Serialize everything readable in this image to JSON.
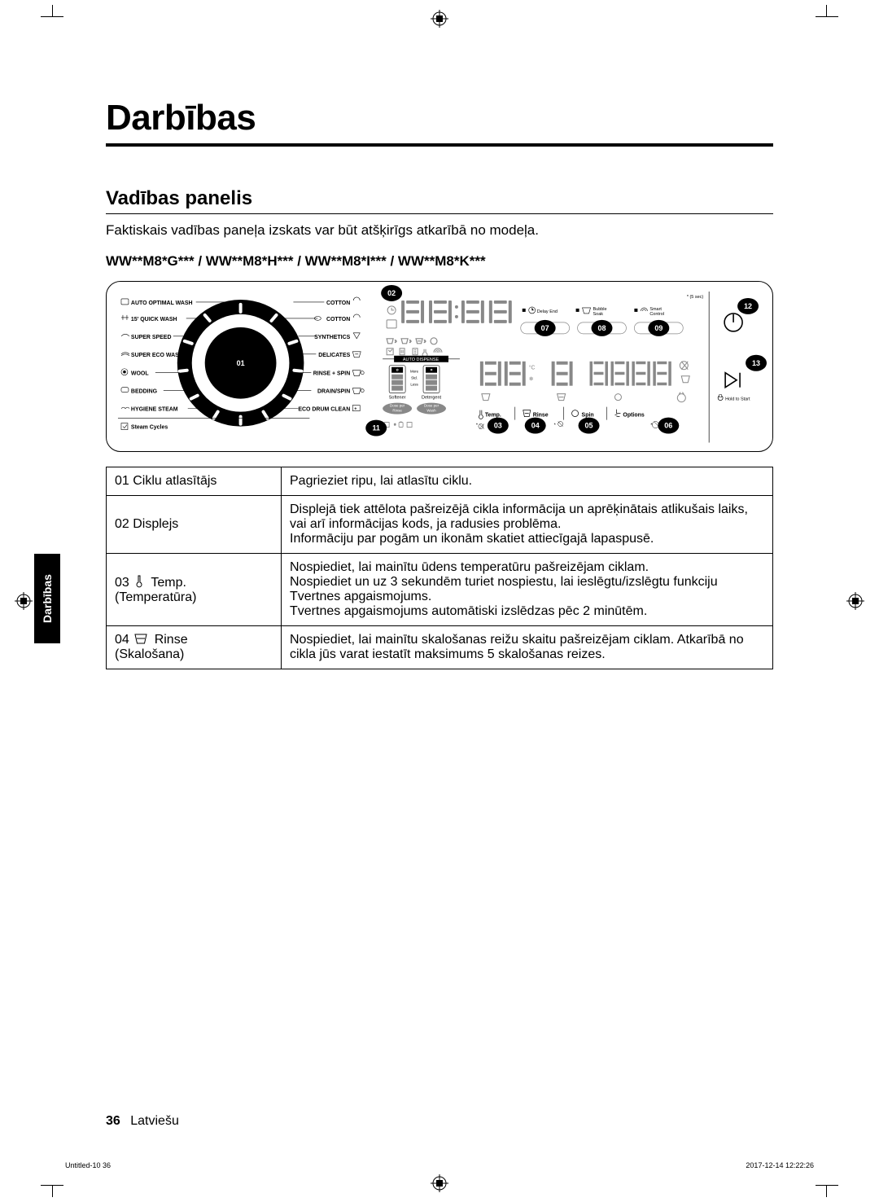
{
  "page": {
    "title": "Darbības",
    "section": "Vadības panelis",
    "intro": "Faktiskais vadības paneļa izskats var būt atšķirīgs atkarībā no modeļa.",
    "models": "WW**M8*G*** / WW**M8*H*** / WW**M8*I*** / WW**M8*K***",
    "side_tab": "Darbības",
    "page_number": "36",
    "lang_label": "Latviešu",
    "footer_left": "Untitled-10   36",
    "footer_right": "2017-12-14   12:22:26"
  },
  "panel": {
    "left_programs": [
      "AUTO OPTIMAL WASH",
      "15' QUICK WASH",
      "SUPER SPEED",
      "SUPER ECO WASH",
      "WOOL",
      "BEDDING",
      "HYGIENE STEAM",
      "Steam Cycles"
    ],
    "right_programs": [
      "COTTON",
      "COTTON",
      "SYNTHETICS",
      "DELICATES",
      "RINSE + SPIN",
      "DRAIN/SPIN",
      "ECO DRUM CLEAN"
    ],
    "display_top_labels": {
      "delay_end": "Delay End",
      "bubble_soak": "Bubble\nSoak",
      "smart_control": "Smart\nControl",
      "five_sec": "* (5 sec)"
    },
    "auto_dispense": "AUTO DISPENSE",
    "dispense_slider": [
      "More",
      "Std.",
      "Less"
    ],
    "dispense_cols": [
      "Softener",
      "Detergent"
    ],
    "dose_labels": [
      "Dose per\nRinse",
      "Dose per\nWash"
    ],
    "bottom_buttons": {
      "temp": "Temp.",
      "rinse": "Rinse",
      "spin": "Spin",
      "options": "Options"
    },
    "hold_to_start": "Hold to Start",
    "callouts": {
      "01": "01",
      "02": "02",
      "03": "03",
      "04": "04",
      "05": "05",
      "06": "06",
      "07": "07",
      "08": "08",
      "09": "09",
      "11": "11",
      "12": "12",
      "13": "13"
    },
    "colors": {
      "stroke": "#000000",
      "grey": "#888888",
      "black": "#000000",
      "white": "#ffffff"
    }
  },
  "table": {
    "rows": [
      {
        "key": "01 Ciklu atlasītājs",
        "val": "Pagrieziet ripu, lai atlasītu ciklu."
      },
      {
        "key": "02 Displejs",
        "val": "Displejā tiek attēlota pašreizējā cikla informācija un aprēķinātais atlikušais laiks, vai arī informācijas kods, ja radusies problēma.\nInformāciju par pogām un ikonām skatiet attiecīgajā lapaspusē."
      },
      {
        "key": "03 ICON_TEMP Temp. (Temperatūra)",
        "val": "Nospiediet, lai mainītu ūdens temperatūru pašreizējam ciklam.\nNospiediet un uz 3 sekundēm turiet nospiestu, lai ieslēgtu/izslēgtu funkciju Tvertnes apgaismojums.\nTvertnes apgaismojums automātiski izslēdzas pēc 2 minūtēm."
      },
      {
        "key": "04 ICON_RINSE Rinse (Skalošana)",
        "val": "Nospiediet, lai mainītu skalošanas reižu skaitu pašreizējam ciklam. Atkarībā no cikla jūs varat iestatīt maksimums 5 skalošanas reizes."
      }
    ]
  }
}
